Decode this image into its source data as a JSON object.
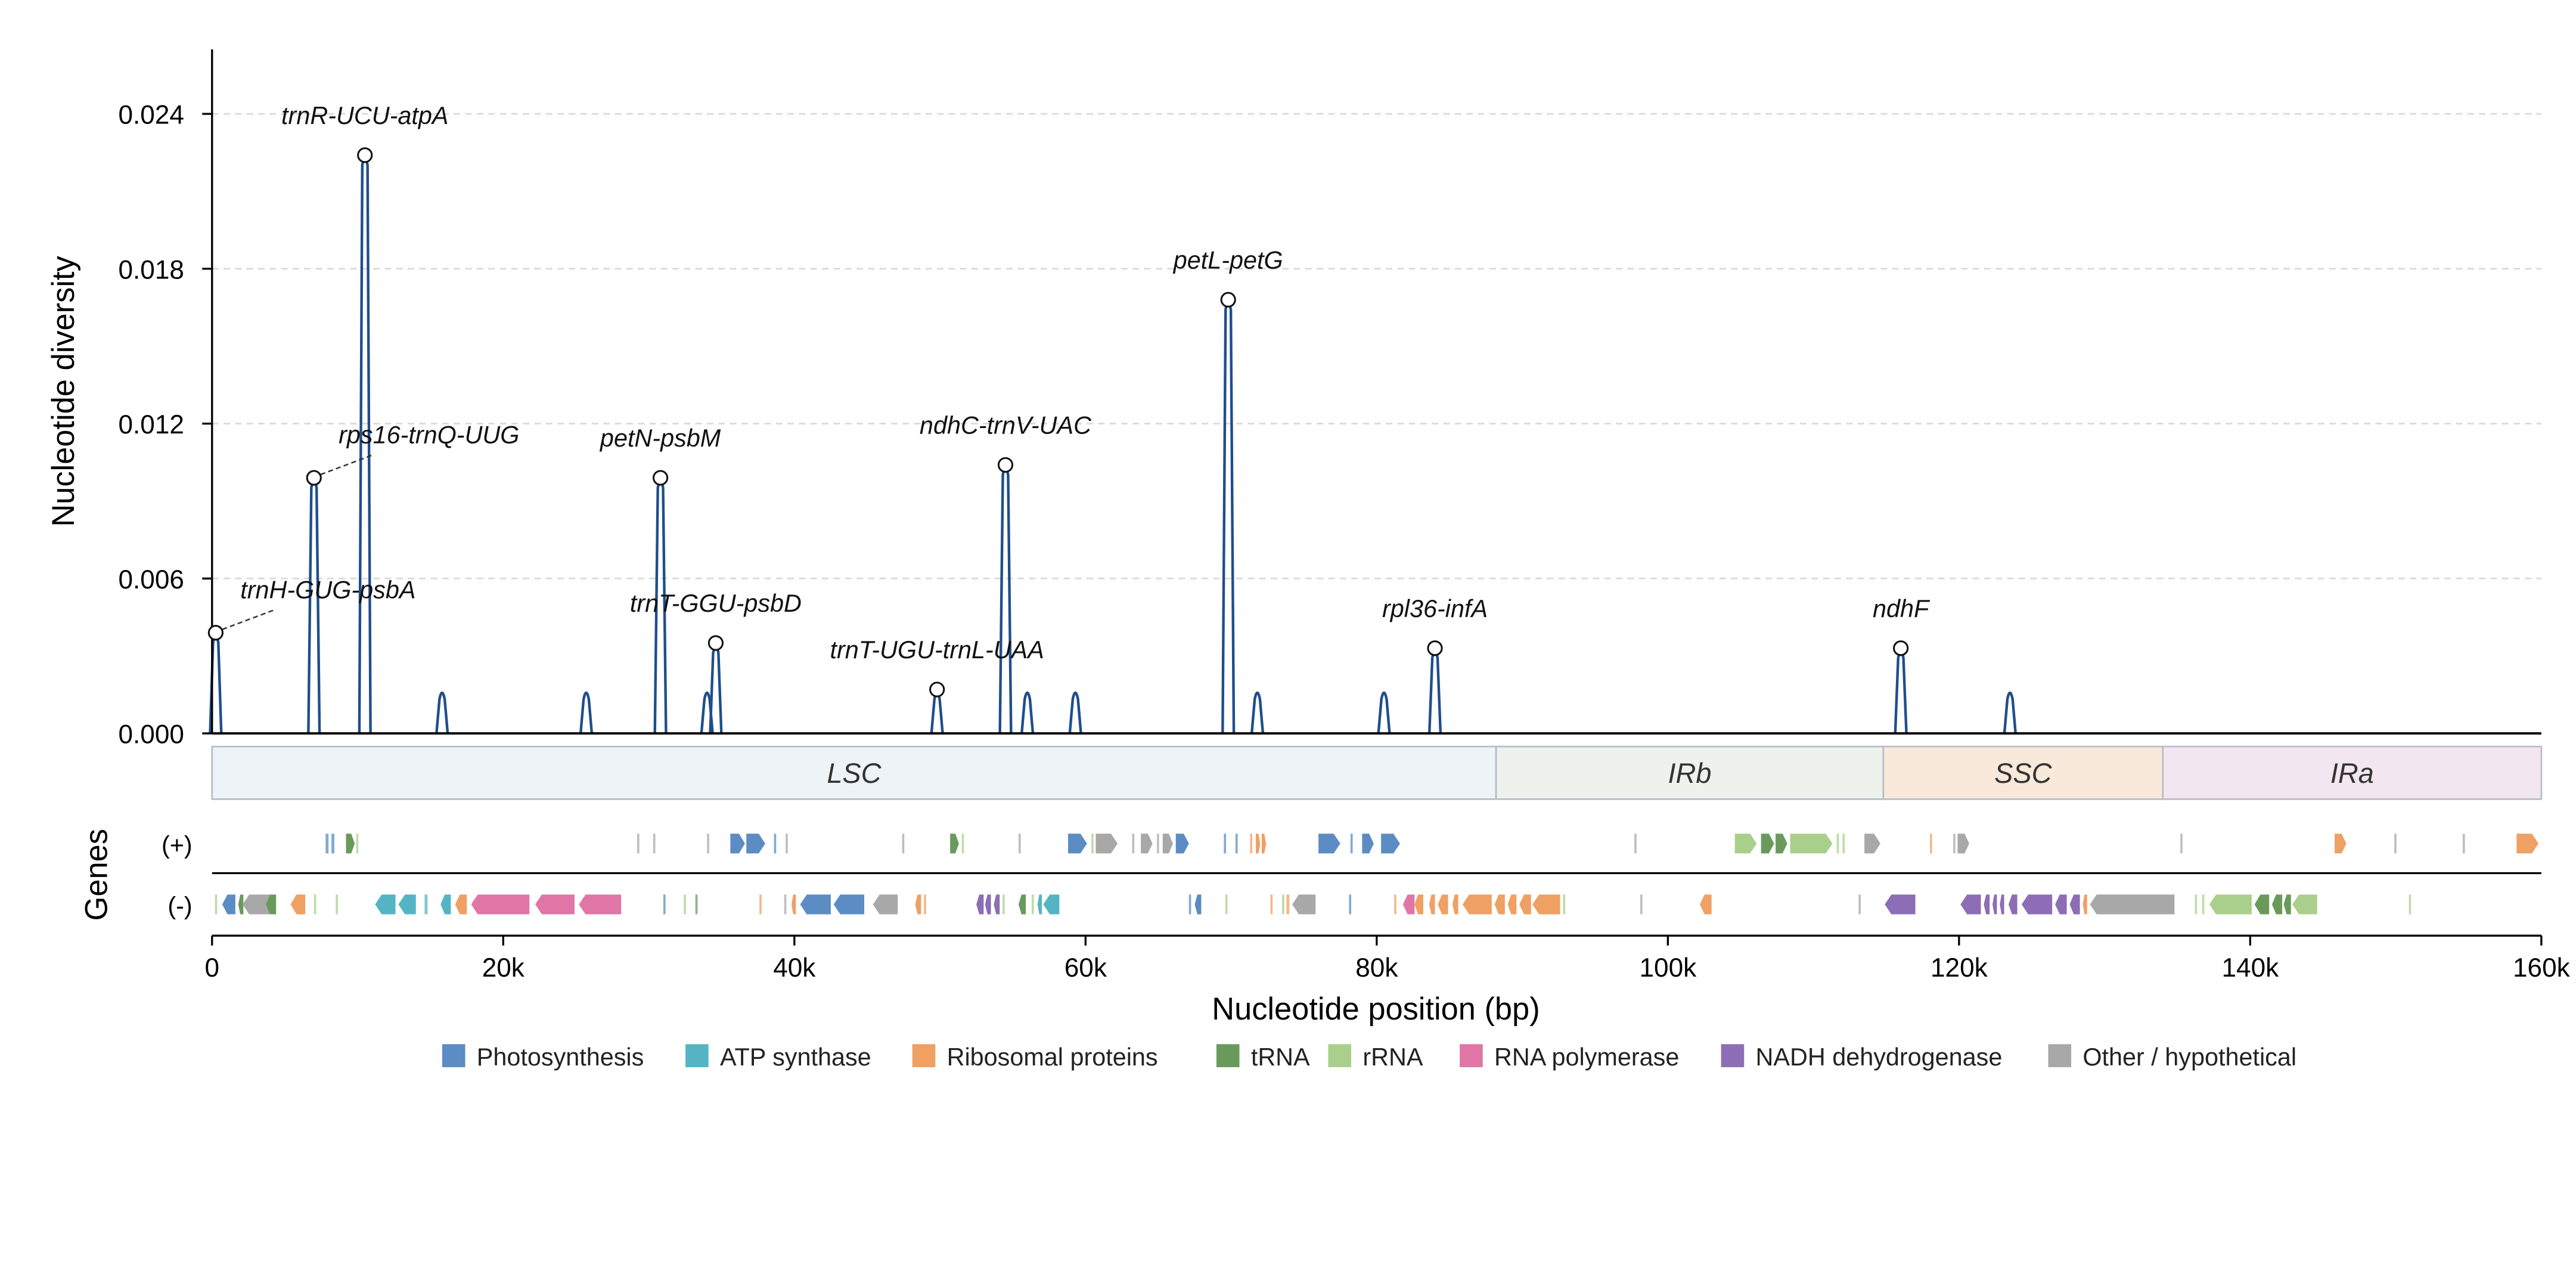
{
  "chart_data": {
    "type": "line",
    "title": "",
    "xlabel": "Nucleotide position (bp)",
    "ylabel": "Nucleotide diversity",
    "genes_label": "Genes",
    "strand_plus_label": "(+)",
    "strand_minus_label": "(-)",
    "xlim": [
      0,
      160000
    ],
    "ylim": [
      0,
      0.0265
    ],
    "x_ticks": [
      0,
      20000,
      40000,
      60000,
      80000,
      100000,
      120000,
      140000,
      160000
    ],
    "x_tick_labels": [
      "0",
      "20k",
      "40k",
      "60k",
      "80k",
      "100k",
      "120k",
      "140k",
      "160k"
    ],
    "y_ticks": [
      0,
      0.006,
      0.012,
      0.018,
      0.024
    ],
    "y_tick_labels": [
      "0.000",
      "0.006",
      "0.012",
      "0.018",
      "0.024"
    ],
    "grid": "horizontal-dashed",
    "series_color": "#1f4e8c",
    "peaks": [
      {
        "x": 250,
        "y": 0.0039
      },
      {
        "x": 7000,
        "y": 0.0099
      },
      {
        "x": 10500,
        "y": 0.0224
      },
      {
        "x": 15800,
        "y": 0.0017
      },
      {
        "x": 25700,
        "y": 0.0017
      },
      {
        "x": 30800,
        "y": 0.0099
      },
      {
        "x": 34000,
        "y": 0.0017
      },
      {
        "x": 34600,
        "y": 0.0035
      },
      {
        "x": 49800,
        "y": 0.0017
      },
      {
        "x": 54500,
        "y": 0.0104
      },
      {
        "x": 56000,
        "y": 0.0017
      },
      {
        "x": 59300,
        "y": 0.0017
      },
      {
        "x": 69800,
        "y": 0.0168
      },
      {
        "x": 71800,
        "y": 0.0017
      },
      {
        "x": 80500,
        "y": 0.0017
      },
      {
        "x": 84000,
        "y": 0.0033
      },
      {
        "x": 116000,
        "y": 0.0033
      },
      {
        "x": 123500,
        "y": 0.0017
      }
    ],
    "annotations": [
      {
        "label": "trnH-GUG-psbA",
        "x": 250,
        "y": 0.0039
      },
      {
        "label": "rps16-trnQ-UUG",
        "x": 7000,
        "y": 0.0099
      },
      {
        "label": "trnR-UCU-atpA",
        "x": 10500,
        "y": 0.0224
      },
      {
        "label": "petN-psbM",
        "x": 30800,
        "y": 0.0099
      },
      {
        "label": "trnT-GGU-psbD",
        "x": 34600,
        "y": 0.0035
      },
      {
        "label": "trnT-UGU-trnL-UAA",
        "x": 49800,
        "y": 0.0017
      },
      {
        "label": "ndhC-trnV-UAC",
        "x": 54500,
        "y": 0.0104
      },
      {
        "label": "petL-petG",
        "x": 69800,
        "y": 0.0168
      },
      {
        "label": "rpl36-infA",
        "x": 84000,
        "y": 0.0033
      },
      {
        "label": "ndhF",
        "x": 116000,
        "y": 0.0033
      }
    ],
    "regions": [
      {
        "name": "LSC",
        "start": 0,
        "end": 88200,
        "color": "#eef3f7"
      },
      {
        "name": "IRb",
        "start": 88200,
        "end": 114800,
        "color": "#edf3ec"
      },
      {
        "name": "SSC",
        "start": 114800,
        "end": 134000,
        "color": "#f9e9da"
      },
      {
        "name": "IRa",
        "start": 134000,
        "end": 160000,
        "color": "#f2e6f1"
      }
    ],
    "categories": [
      {
        "name": "Photosynthesis",
        "color": "#5b8cc3"
      },
      {
        "name": "ATP synthase",
        "color": "#55b4c3"
      },
      {
        "name": "Ribosomal proteins",
        "color": "#efa063"
      },
      {
        "name": "tRNA",
        "color": "#6a9a5b"
      },
      {
        "name": "rRNA",
        "color": "#aacf8c"
      },
      {
        "name": "RNA polymerase",
        "color": "#df76a6"
      },
      {
        "name": "NADH dehydrogenase",
        "color": "#8d6db5"
      },
      {
        "name": "Other / hypothetical",
        "color": "#a8a8a8"
      }
    ],
    "genes_plus": [
      {
        "start": 7800,
        "end": 8000,
        "cat": 0
      },
      {
        "start": 8200,
        "end": 8400,
        "cat": 0
      },
      {
        "start": 9200,
        "end": 9800,
        "cat": 3
      },
      {
        "start": 9900,
        "end": 10050,
        "cat": 4
      },
      {
        "start": 29200,
        "end": 29350,
        "cat": 7
      },
      {
        "start": 30300,
        "end": 30450,
        "cat": 7
      },
      {
        "start": 34000,
        "end": 34150,
        "cat": 7
      },
      {
        "start": 35600,
        "end": 36600,
        "cat": 0
      },
      {
        "start": 36700,
        "end": 38000,
        "cat": 0
      },
      {
        "start": 38600,
        "end": 38750,
        "cat": 0
      },
      {
        "start": 39400,
        "end": 39550,
        "cat": 7
      },
      {
        "start": 47400,
        "end": 47550,
        "cat": 7
      },
      {
        "start": 50700,
        "end": 51300,
        "cat": 3
      },
      {
        "start": 51500,
        "end": 51650,
        "cat": 4
      },
      {
        "start": 55400,
        "end": 55550,
        "cat": 7
      },
      {
        "start": 58800,
        "end": 60100,
        "cat": 0
      },
      {
        "start": 60400,
        "end": 60550,
        "cat": 4
      },
      {
        "start": 60700,
        "end": 62200,
        "cat": 7
      },
      {
        "start": 63200,
        "end": 63350,
        "cat": 7
      },
      {
        "start": 63800,
        "end": 64600,
        "cat": 7
      },
      {
        "start": 64900,
        "end": 65050,
        "cat": 7
      },
      {
        "start": 65300,
        "end": 66000,
        "cat": 7
      },
      {
        "start": 66200,
        "end": 67100,
        "cat": 0
      },
      {
        "start": 69500,
        "end": 69650,
        "cat": 0
      },
      {
        "start": 70300,
        "end": 70450,
        "cat": 0
      },
      {
        "start": 71300,
        "end": 71450,
        "cat": 2
      },
      {
        "start": 71700,
        "end": 72000,
        "cat": 2
      },
      {
        "start": 72100,
        "end": 72400,
        "cat": 2
      },
      {
        "start": 76000,
        "end": 77500,
        "cat": 0
      },
      {
        "start": 78200,
        "end": 78350,
        "cat": 0
      },
      {
        "start": 79000,
        "end": 79800,
        "cat": 0
      },
      {
        "start": 80300,
        "end": 81600,
        "cat": 0
      },
      {
        "start": 97700,
        "end": 97850,
        "cat": 7
      },
      {
        "start": 104600,
        "end": 106100,
        "cat": 4
      },
      {
        "start": 106400,
        "end": 107300,
        "cat": 3
      },
      {
        "start": 107400,
        "end": 108200,
        "cat": 3
      },
      {
        "start": 108400,
        "end": 111300,
        "cat": 4
      },
      {
        "start": 111600,
        "end": 111750,
        "cat": 4
      },
      {
        "start": 112000,
        "end": 112150,
        "cat": 4
      },
      {
        "start": 113500,
        "end": 114600,
        "cat": 7
      },
      {
        "start": 118000,
        "end": 118150,
        "cat": 2
      },
      {
        "start": 119600,
        "end": 119750,
        "cat": 7
      },
      {
        "start": 119900,
        "end": 120700,
        "cat": 7
      },
      {
        "start": 135200,
        "end": 135350,
        "cat": 7
      },
      {
        "start": 145800,
        "end": 146600,
        "cat": 2
      },
      {
        "start": 149900,
        "end": 150050,
        "cat": 7
      },
      {
        "start": 154600,
        "end": 154750,
        "cat": 7
      },
      {
        "start": 158300,
        "end": 159800,
        "cat": 2
      }
    ],
    "genes_minus": [
      {
        "start": 200,
        "end": 350,
        "cat": 4
      },
      {
        "start": 700,
        "end": 1600,
        "cat": 0
      },
      {
        "start": 1800,
        "end": 2150,
        "cat": 3
      },
      {
        "start": 2100,
        "end": 4200,
        "cat": 7
      },
      {
        "start": 3700,
        "end": 4400,
        "cat": 3
      },
      {
        "start": 5400,
        "end": 6400,
        "cat": 2
      },
      {
        "start": 7000,
        "end": 7150,
        "cat": 4
      },
      {
        "start": 8500,
        "end": 8650,
        "cat": 4
      },
      {
        "start": 11200,
        "end": 12600,
        "cat": 1
      },
      {
        "start": 12800,
        "end": 14000,
        "cat": 1
      },
      {
        "start": 14600,
        "end": 14800,
        "cat": 1
      },
      {
        "start": 15700,
        "end": 16400,
        "cat": 1
      },
      {
        "start": 16700,
        "end": 17500,
        "cat": 2
      },
      {
        "start": 17800,
        "end": 21800,
        "cat": 5
      },
      {
        "start": 22200,
        "end": 24900,
        "cat": 5
      },
      {
        "start": 25200,
        "end": 28100,
        "cat": 5
      },
      {
        "start": 31000,
        "end": 31150,
        "cat": 0
      },
      {
        "start": 32400,
        "end": 32550,
        "cat": 4
      },
      {
        "start": 33200,
        "end": 33350,
        "cat": 3
      },
      {
        "start": 37600,
        "end": 37750,
        "cat": 2
      },
      {
        "start": 39300,
        "end": 39450,
        "cat": 7
      },
      {
        "start": 39800,
        "end": 40100,
        "cat": 2
      },
      {
        "start": 40400,
        "end": 42500,
        "cat": 0
      },
      {
        "start": 42700,
        "end": 44800,
        "cat": 0
      },
      {
        "start": 45400,
        "end": 47100,
        "cat": 7
      },
      {
        "start": 48300,
        "end": 48700,
        "cat": 2
      },
      {
        "start": 48900,
        "end": 49050,
        "cat": 2
      },
      {
        "start": 52500,
        "end": 53000,
        "cat": 6
      },
      {
        "start": 53100,
        "end": 53500,
        "cat": 6
      },
      {
        "start": 53700,
        "end": 54100,
        "cat": 6
      },
      {
        "start": 54300,
        "end": 54450,
        "cat": 4
      },
      {
        "start": 55400,
        "end": 55900,
        "cat": 3
      },
      {
        "start": 56300,
        "end": 56450,
        "cat": 4
      },
      {
        "start": 56700,
        "end": 57000,
        "cat": 1
      },
      {
        "start": 57100,
        "end": 58200,
        "cat": 1
      },
      {
        "start": 67100,
        "end": 67250,
        "cat": 0
      },
      {
        "start": 67500,
        "end": 67950,
        "cat": 0
      },
      {
        "start": 69600,
        "end": 69750,
        "cat": 4
      },
      {
        "start": 72700,
        "end": 72850,
        "cat": 2
      },
      {
        "start": 73500,
        "end": 73650,
        "cat": 4
      },
      {
        "start": 73800,
        "end": 74000,
        "cat": 2
      },
      {
        "start": 74200,
        "end": 75800,
        "cat": 7
      },
      {
        "start": 78100,
        "end": 78250,
        "cat": 0
      },
      {
        "start": 81200,
        "end": 81350,
        "cat": 2
      },
      {
        "start": 81800,
        "end": 82600,
        "cat": 5
      },
      {
        "start": 82600,
        "end": 83200,
        "cat": 2
      },
      {
        "start": 83600,
        "end": 84000,
        "cat": 2
      },
      {
        "start": 84200,
        "end": 84900,
        "cat": 2
      },
      {
        "start": 85200,
        "end": 85600,
        "cat": 2
      },
      {
        "start": 85900,
        "end": 87900,
        "cat": 2
      },
      {
        "start": 88100,
        "end": 88800,
        "cat": 2
      },
      {
        "start": 89000,
        "end": 89600,
        "cat": 2
      },
      {
        "start": 89800,
        "end": 90600,
        "cat": 2
      },
      {
        "start": 90700,
        "end": 92600,
        "cat": 2
      },
      {
        "start": 92800,
        "end": 92950,
        "cat": 4
      },
      {
        "start": 98100,
        "end": 98250,
        "cat": 7
      },
      {
        "start": 102200,
        "end": 103000,
        "cat": 2
      },
      {
        "start": 113100,
        "end": 113250,
        "cat": 7
      },
      {
        "start": 114900,
        "end": 117000,
        "cat": 6
      },
      {
        "start": 120100,
        "end": 121500,
        "cat": 6
      },
      {
        "start": 121700,
        "end": 122100,
        "cat": 6
      },
      {
        "start": 122300,
        "end": 122600,
        "cat": 6
      },
      {
        "start": 122800,
        "end": 123100,
        "cat": 6
      },
      {
        "start": 123400,
        "end": 124000,
        "cat": 6
      },
      {
        "start": 124300,
        "end": 126400,
        "cat": 6
      },
      {
        "start": 126600,
        "end": 127400,
        "cat": 6
      },
      {
        "start": 127600,
        "end": 128300,
        "cat": 6
      },
      {
        "start": 128500,
        "end": 128800,
        "cat": 2
      },
      {
        "start": 129000,
        "end": 134800,
        "cat": 7
      },
      {
        "start": 136200,
        "end": 136350,
        "cat": 4
      },
      {
        "start": 136700,
        "end": 136850,
        "cat": 4
      },
      {
        "start": 137200,
        "end": 140100,
        "cat": 4
      },
      {
        "start": 140300,
        "end": 141300,
        "cat": 3
      },
      {
        "start": 141500,
        "end": 142200,
        "cat": 3
      },
      {
        "start": 142300,
        "end": 142800,
        "cat": 3
      },
      {
        "start": 142900,
        "end": 144600,
        "cat": 4
      },
      {
        "start": 150900,
        "end": 151050,
        "cat": 4
      }
    ]
  }
}
